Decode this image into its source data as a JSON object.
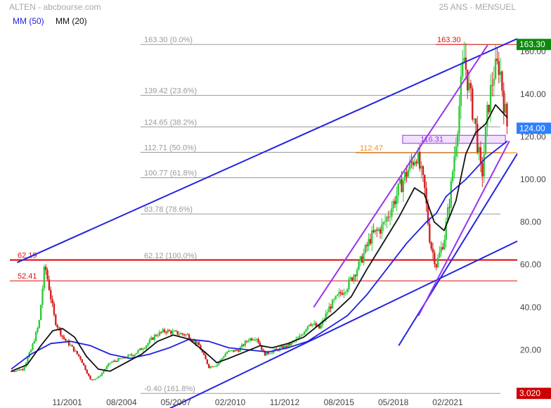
{
  "header": {
    "title": "ALTEN - abcbourse.com",
    "period": "25 ANS - MENSUEL"
  },
  "legend": [
    {
      "label": "MM (50)",
      "color": "#1f1fe6"
    },
    {
      "label": "MM (20)",
      "color": "#111111"
    }
  ],
  "colors": {
    "up": "#2ecc3a",
    "down": "#d62020",
    "ma50": "#1f1fe6",
    "ma20": "#111111",
    "trend": "#2323e0",
    "channel": "#9933ee",
    "fib": "#9a9a9a",
    "resist": "#e01010",
    "orange": "#ff8c1a",
    "price_tag": "#2f80ff",
    "high_tag": "#0c8a0c",
    "low_tag": "#cc0000"
  },
  "chart_data": {
    "type": "candlestick",
    "title": "ALTEN",
    "y_axis": {
      "ticks": [
        20.0,
        40.0,
        60.0,
        80.0,
        100.0,
        120.0,
        140.0,
        160.0
      ],
      "range": [
        0,
        167
      ]
    },
    "x_axis": {
      "ticks": [
        "11/2001",
        "08/2004",
        "05/2007",
        "02/2010",
        "11/2012",
        "08/2015",
        "05/2018",
        "02/2021"
      ]
    },
    "last_price": "124.00",
    "high": "163.30",
    "low": "3.020",
    "fibonacci": [
      {
        "price": 163.3,
        "label": "163.30  (0.0%)"
      },
      {
        "price": 139.42,
        "label": "139.42  (23.6%)"
      },
      {
        "price": 124.65,
        "label": "124.65  (38.2%)"
      },
      {
        "price": 112.71,
        "label": "112.71  (50.0%)"
      },
      {
        "price": 100.77,
        "label": "100.77  (61.8%)"
      },
      {
        "price": 83.78,
        "label": "83.78  (78.6%)"
      },
      {
        "price": 62.12,
        "label": "62.12  (100.0%)"
      },
      {
        "price": -0.4,
        "label": "-0.40  (161.8%)"
      }
    ],
    "levels": [
      {
        "price": 62.19,
        "label": "62.19",
        "color": "#e01010"
      },
      {
        "price": 52.41,
        "label": "52.41",
        "color": "#e01010"
      },
      {
        "price": 112.47,
        "label": "112.47",
        "color": "#ff8c1a"
      },
      {
        "price": 116.31,
        "label": "116.31",
        "color": "#9933ee"
      }
    ],
    "top_label": "163.30",
    "ma_legend": [
      "MM (50)",
      "MM (20)"
    ],
    "price_path": [
      [
        1999.0,
        10
      ],
      [
        1999.6,
        11
      ],
      [
        2000.0,
        20
      ],
      [
        2000.4,
        32
      ],
      [
        2000.7,
        60
      ],
      [
        2000.9,
        50
      ],
      [
        2001.2,
        34
      ],
      [
        2001.6,
        26
      ],
      [
        2002.0,
        22
      ],
      [
        2002.5,
        16
      ],
      [
        2003.0,
        6
      ],
      [
        2003.4,
        7
      ],
      [
        2004.0,
        14
      ],
      [
        2004.6,
        16
      ],
      [
        2005.2,
        18
      ],
      [
        2005.8,
        22
      ],
      [
        2006.3,
        27
      ],
      [
        2006.8,
        29
      ],
      [
        2007.3,
        28
      ],
      [
        2007.9,
        27
      ],
      [
        2008.5,
        22
      ],
      [
        2009.0,
        12
      ],
      [
        2009.4,
        13
      ],
      [
        2009.9,
        19
      ],
      [
        2010.5,
        20
      ],
      [
        2011.0,
        25
      ],
      [
        2011.4,
        26
      ],
      [
        2011.8,
        18
      ],
      [
        2012.4,
        20
      ],
      [
        2013.0,
        22
      ],
      [
        2013.6,
        26
      ],
      [
        2014.1,
        33
      ],
      [
        2014.6,
        30
      ],
      [
        2015.1,
        40
      ],
      [
        2015.6,
        46
      ],
      [
        2016.0,
        50
      ],
      [
        2016.6,
        60
      ],
      [
        2017.2,
        73
      ],
      [
        2017.8,
        78
      ],
      [
        2018.2,
        86
      ],
      [
        2018.6,
        95
      ],
      [
        2019.1,
        105
      ],
      [
        2019.5,
        112
      ],
      [
        2019.9,
        96
      ],
      [
        2020.2,
        70
      ],
      [
        2020.5,
        60
      ],
      [
        2020.9,
        72
      ],
      [
        2021.2,
        92
      ],
      [
        2021.6,
        128
      ],
      [
        2021.9,
        158
      ],
      [
        2022.2,
        140
      ],
      [
        2022.5,
        124
      ],
      [
        2022.8,
        100
      ],
      [
        2023.1,
        132
      ],
      [
        2023.4,
        150
      ],
      [
        2023.7,
        154
      ],
      [
        2023.9,
        138
      ],
      [
        2024.1,
        124
      ]
    ],
    "ma20": [
      [
        1999.0,
        10
      ],
      [
        1999.8,
        13
      ],
      [
        2000.5,
        22
      ],
      [
        2001.1,
        29
      ],
      [
        2001.6,
        30
      ],
      [
        2002.2,
        26
      ],
      [
        2002.8,
        17
      ],
      [
        2003.4,
        11
      ],
      [
        2004.0,
        10
      ],
      [
        2004.8,
        14
      ],
      [
        2005.6,
        18
      ],
      [
        2006.4,
        24
      ],
      [
        2007.2,
        27
      ],
      [
        2008.0,
        25
      ],
      [
        2008.8,
        19
      ],
      [
        2009.4,
        14
      ],
      [
        2010.0,
        16
      ],
      [
        2010.8,
        19
      ],
      [
        2011.6,
        22
      ],
      [
        2012.2,
        21
      ],
      [
        2013.0,
        23
      ],
      [
        2013.8,
        26
      ],
      [
        2014.6,
        32
      ],
      [
        2015.4,
        38
      ],
      [
        2016.2,
        45
      ],
      [
        2017.0,
        58
      ],
      [
        2017.8,
        70
      ],
      [
        2018.6,
        82
      ],
      [
        2019.4,
        96
      ],
      [
        2019.9,
        93
      ],
      [
        2020.4,
        80
      ],
      [
        2020.9,
        76
      ],
      [
        2021.5,
        90
      ],
      [
        2022.0,
        112
      ],
      [
        2022.5,
        122
      ],
      [
        2023.0,
        126
      ],
      [
        2023.5,
        135
      ],
      [
        2024.1,
        129
      ]
    ],
    "ma50": [
      [
        1999.0,
        11
      ],
      [
        2000.0,
        18
      ],
      [
        2001.0,
        23
      ],
      [
        2002.0,
        24
      ],
      [
        2003.0,
        22
      ],
      [
        2004.0,
        18
      ],
      [
        2005.0,
        16
      ],
      [
        2006.0,
        18
      ],
      [
        2007.0,
        21
      ],
      [
        2008.0,
        25
      ],
      [
        2009.0,
        24
      ],
      [
        2010.0,
        21
      ],
      [
        2011.0,
        20
      ],
      [
        2012.0,
        19
      ],
      [
        2013.0,
        21
      ],
      [
        2014.0,
        24
      ],
      [
        2015.0,
        30
      ],
      [
        2016.0,
        36
      ],
      [
        2017.0,
        46
      ],
      [
        2018.0,
        58
      ],
      [
        2019.0,
        70
      ],
      [
        2020.0,
        80
      ],
      [
        2020.5,
        84
      ],
      [
        2021.0,
        92
      ],
      [
        2022.0,
        100
      ],
      [
        2023.0,
        110
      ],
      [
        2024.1,
        118
      ]
    ],
    "trend_lines": [
      {
        "from": [
          1999.3,
          61
        ],
        "to": [
          2024.6,
          166
        ]
      },
      {
        "from": [
          2006.0,
          -12
        ],
        "to": [
          2024.6,
          71
        ]
      },
      {
        "from": [
          2018.6,
          22
        ],
        "to": [
          2024.6,
          112
        ]
      }
    ],
    "channel": [
      {
        "from": [
          2014.3,
          40
        ],
        "to": [
          2023.1,
          163
        ]
      },
      {
        "from": [
          2019.6,
          36
        ],
        "to": [
          2024.2,
          118
        ]
      }
    ],
    "purple_box": {
      "x1": 2018.8,
      "x2": 2024.0,
      "y1": 116.9,
      "y2": 120.7
    }
  }
}
